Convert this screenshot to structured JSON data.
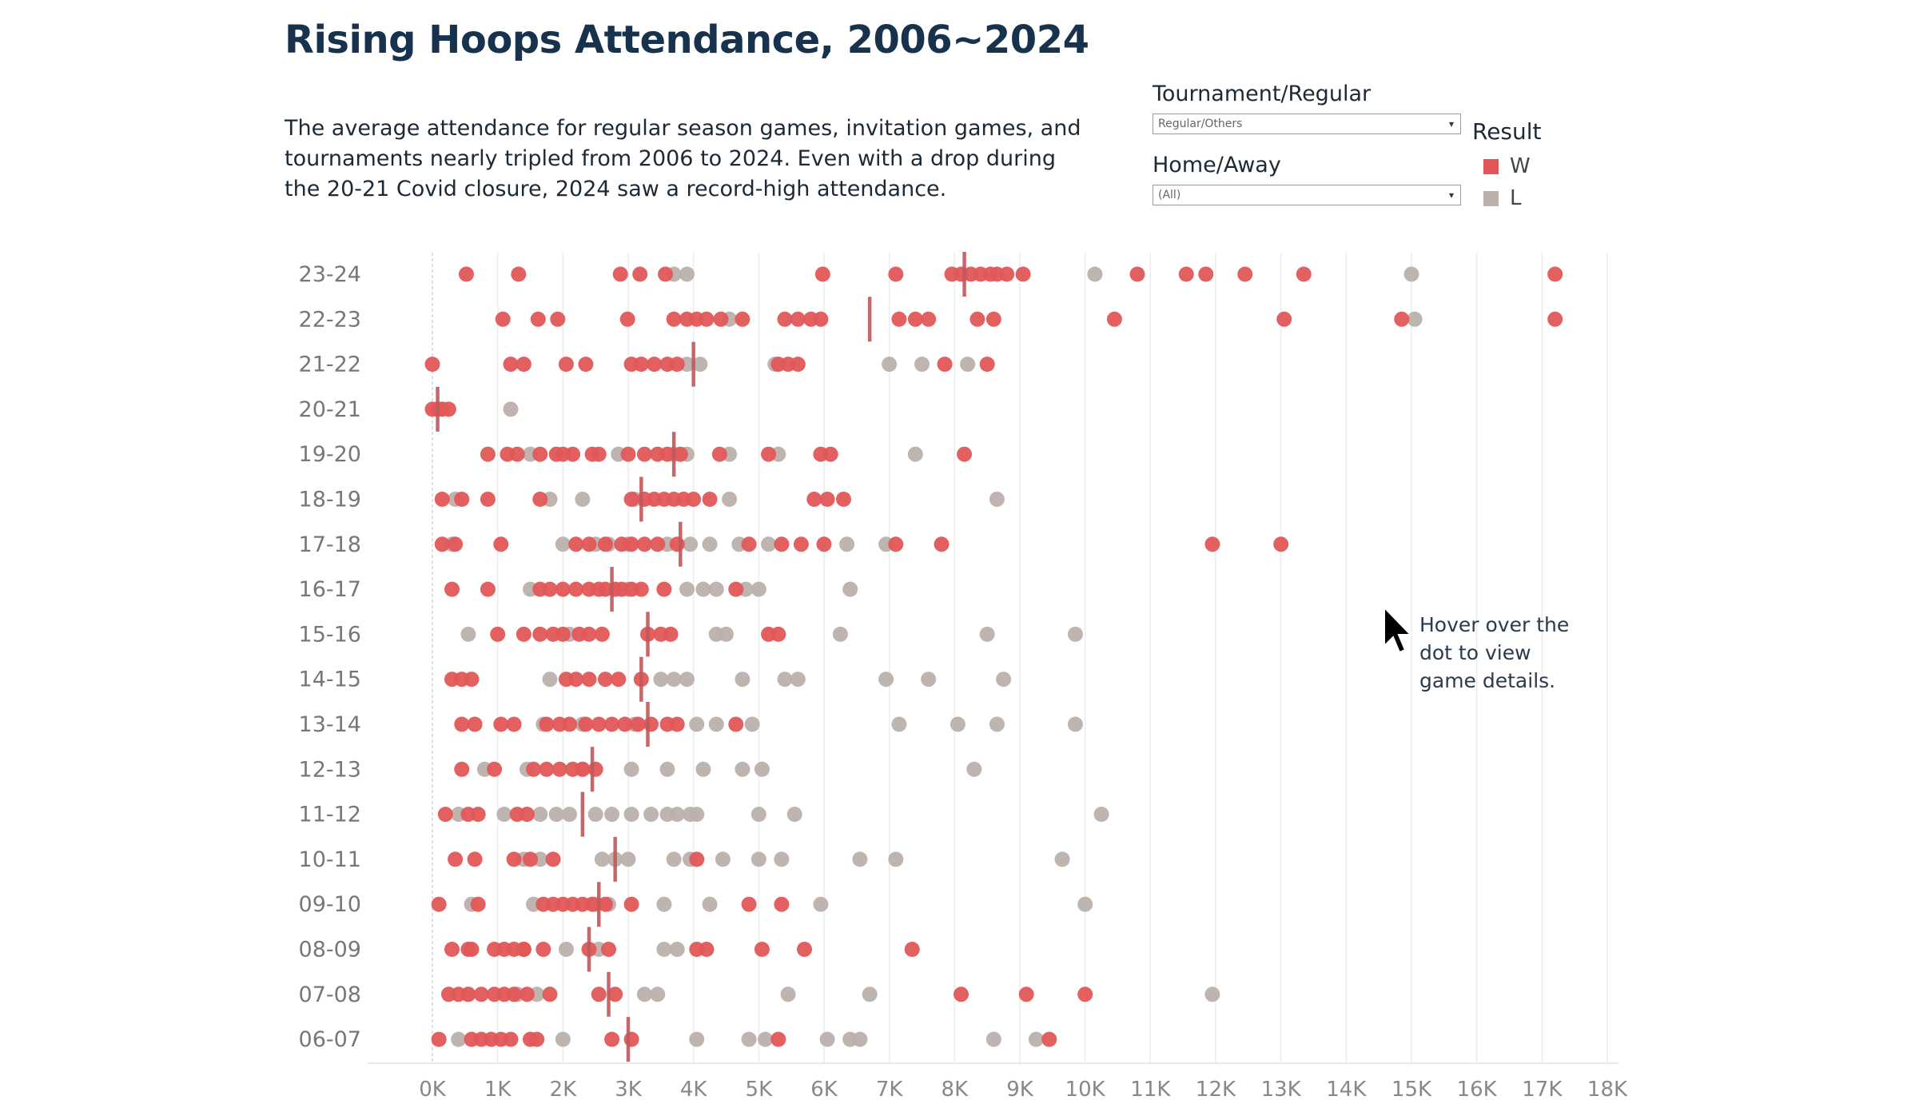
{
  "title": "Rising Hoops Attendance, 2006~2024",
  "subtitle": "The average attendance for regular season games, invitation games, and tournaments nearly tripled from 2006 to 2024. Even with a drop during the 20-21 Covid closure, 2024 saw a record-high attendance.",
  "filters": [
    {
      "label": "Tournament/Regular",
      "value": "Regular/Others"
    },
    {
      "label": "Home/Away",
      "value": "(All)"
    }
  ],
  "legend": {
    "title": "Result",
    "items": [
      {
        "label": "W",
        "color": "#e15759"
      },
      {
        "label": "L",
        "color": "#bab0ac"
      }
    ]
  },
  "hint": "Hover over the dot to view game details.",
  "chart_data": {
    "type": "scatter",
    "x_ticks": [
      "0K",
      "1K",
      "2K",
      "3K",
      "4K",
      "5K",
      "6K",
      "7K",
      "8K",
      "9K",
      "10K",
      "11K",
      "12K",
      "13K",
      "14K",
      "15K",
      "16K",
      "17K",
      "18K"
    ],
    "xlim": [
      0,
      18000
    ],
    "grid": true,
    "series_colors": {
      "W": "#e15759",
      "L": "#bab0ac",
      "avg": "#c0585b"
    },
    "seasons": [
      {
        "season": "23-24",
        "avg": 8150,
        "W": [
          520,
          1320,
          2880,
          3180,
          3570,
          5980,
          7100,
          7960,
          8100,
          8250,
          8400,
          8550,
          8650,
          8800,
          9050,
          10800,
          11550,
          11850,
          12450,
          13350,
          17200
        ],
        "L": [
          3700,
          3900,
          10150,
          15000
        ]
      },
      {
        "season": "22-23",
        "avg": 6700,
        "W": [
          1080,
          1620,
          1920,
          2990,
          3700,
          3900,
          4050,
          4200,
          4420,
          4750,
          5400,
          5600,
          5800,
          5950,
          7150,
          7400,
          7600,
          8350,
          8600,
          10450,
          13050,
          14850,
          17200
        ],
        "L": [
          4550,
          15050
        ]
      },
      {
        "season": "21-22",
        "avg": 4000,
        "W": [
          0,
          1200,
          1400,
          2050,
          2350,
          3050,
          3200,
          3400,
          3600,
          3750,
          5300,
          5450,
          5600,
          7850,
          8500
        ],
        "L": [
          3900,
          4100,
          5250,
          7000,
          7500,
          8200
        ]
      },
      {
        "season": "20-21",
        "avg": 80,
        "W": [
          0,
          80,
          150,
          250
        ],
        "L": [
          1200
        ]
      },
      {
        "season": "19-20",
        "avg": 3700,
        "W": [
          850,
          1150,
          1300,
          1650,
          1900,
          2000,
          2150,
          2450,
          2550,
          3000,
          3250,
          3450,
          3600,
          3800,
          4400,
          5150,
          5950,
          6100,
          8150
        ],
        "L": [
          1500,
          2850,
          3700,
          3900,
          4550,
          5300,
          7400
        ]
      },
      {
        "season": "18-19",
        "avg": 3200,
        "W": [
          150,
          450,
          850,
          1650,
          3050,
          3250,
          3400,
          3550,
          3700,
          3850,
          4000,
          4250,
          5850,
          6050,
          6300
        ],
        "L": [
          350,
          1800,
          2300,
          3100,
          4550,
          8650
        ]
      },
      {
        "season": "17-18",
        "avg": 3800,
        "W": [
          150,
          350,
          1050,
          2200,
          2400,
          2650,
          2900,
          3050,
          3250,
          3450,
          3750,
          4850,
          5350,
          5650,
          6000,
          7100,
          7800,
          11950,
          13000
        ],
        "L": [
          300,
          2000,
          2500,
          2700,
          3000,
          3600,
          3950,
          4250,
          4700,
          5150,
          6350,
          6950
        ],
        "dup": true
      },
      {
        "season": "16-17",
        "avg": 2750,
        "W": [
          300,
          850,
          1650,
          1800,
          2000,
          2200,
          2400,
          2550,
          2650,
          2800,
          2900,
          3050,
          3200,
          3550,
          4650
        ],
        "L": [
          1500,
          3000,
          3900,
          4150,
          4350,
          4800,
          5000,
          6400
        ]
      },
      {
        "season": "15-16",
        "avg": 3300,
        "W": [
          1000,
          1400,
          1650,
          1850,
          2000,
          2250,
          2400,
          2600,
          3300,
          3500,
          3650,
          5150,
          5300
        ],
        "L": [
          550,
          2100,
          4350,
          4500,
          6250,
          8500,
          9850
        ]
      },
      {
        "season": "14-15",
        "avg": 3200,
        "W": [
          300,
          450,
          600,
          2050,
          2200,
          2400,
          2650,
          2850,
          3200
        ],
        "L": [
          1800,
          3500,
          3700,
          3900,
          4750,
          5400,
          5600,
          6950,
          7600,
          8750
        ]
      },
      {
        "season": "13-14",
        "avg": 3300,
        "W": [
          450,
          650,
          1050,
          1250,
          1750,
          1950,
          2100,
          2350,
          2550,
          2750,
          2950,
          3150,
          3350,
          3600,
          3750,
          4650
        ],
        "L": [
          1700,
          2300,
          3100,
          4050,
          4350,
          4900,
          7150,
          8050,
          8650,
          9850
        ]
      },
      {
        "season": "12-13",
        "avg": 2450,
        "W": [
          450,
          950,
          1550,
          1750,
          1950,
          2150,
          2300,
          2500
        ],
        "L": [
          800,
          1450,
          2300,
          3050,
          3600,
          4150,
          4750,
          5050,
          8300
        ]
      },
      {
        "season": "11-12",
        "avg": 2300,
        "W": [
          200,
          550,
          700,
          1300,
          1450
        ],
        "L": [
          400,
          1100,
          1650,
          1900,
          2100,
          2500,
          2750,
          3050,
          3350,
          3600,
          3750,
          3950,
          4050,
          5000,
          5550,
          10250
        ]
      },
      {
        "season": "10-11",
        "avg": 2800,
        "W": [
          350,
          650,
          1250,
          1500,
          1850,
          4050
        ],
        "L": [
          1400,
          1650,
          2600,
          2800,
          3000,
          3700,
          3950,
          4450,
          5000,
          5350,
          6550,
          7100,
          9650
        ]
      },
      {
        "season": "09-10",
        "avg": 2550,
        "W": [
          100,
          700,
          1700,
          1850,
          2000,
          2150,
          2300,
          2450,
          2650,
          3050,
          4850,
          5350
        ],
        "L": [
          600,
          1550,
          2500,
          2700,
          3550,
          4250,
          5950,
          10000
        ]
      },
      {
        "season": "08-09",
        "avg": 2400,
        "W": [
          300,
          550,
          600,
          950,
          1100,
          1250,
          1400,
          1400,
          1700,
          2400,
          2700,
          4050,
          4200,
          5050,
          5700,
          7350
        ],
        "L": [
          2050,
          2550,
          3550,
          3750
        ]
      },
      {
        "season": "07-08",
        "avg": 2700,
        "W": [
          250,
          400,
          550,
          750,
          950,
          1100,
          1250,
          1450,
          1800,
          2550,
          2800,
          8100,
          9100,
          10000
        ],
        "L": [
          550,
          1300,
          1600,
          3250,
          3450,
          5450,
          6700,
          11950
        ]
      },
      {
        "season": "06-07",
        "avg": 3000,
        "W": [
          100,
          600,
          750,
          900,
          1050,
          1200,
          1500,
          1600,
          2750,
          3050,
          5300,
          9450
        ],
        "L": [
          400,
          2000,
          4050,
          4850,
          5100,
          6050,
          6400,
          6550,
          8600,
          9250
        ]
      }
    ]
  }
}
